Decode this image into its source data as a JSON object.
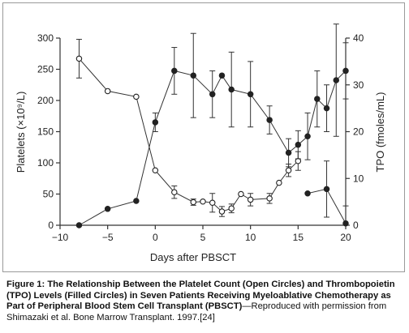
{
  "chart_data": {
    "type": "line",
    "xlabel": "Days after PBSCT",
    "ylabel_left": "Platelets (×10⁹/L)",
    "ylabel_right": "TPO (fmoles/mL)",
    "xlim": [
      -10,
      20
    ],
    "ylim_left": [
      0,
      300
    ],
    "ylim_right": [
      0,
      40
    ],
    "x_ticks": [
      -10,
      -5,
      0,
      5,
      10,
      15,
      20
    ],
    "y_ticks_left": [
      0,
      50,
      100,
      150,
      200,
      250,
      300
    ],
    "y_ticks_right": [
      0,
      10,
      20,
      30,
      40
    ],
    "grid": false,
    "series": [
      {
        "marker": "open-circle",
        "axis": "left",
        "x": [
          -8,
          -5,
          -2,
          0,
          2,
          4,
          5,
          6,
          7,
          8,
          9,
          10,
          12,
          13,
          14,
          15
        ],
        "y": [
          267,
          215,
          206,
          88,
          53,
          37,
          38,
          36,
          22,
          27,
          50,
          41,
          43,
          68,
          88,
          103
        ],
        "err": [
          31,
          0,
          0,
          0,
          10,
          5,
          0,
          15,
          8,
          7,
          0,
          10,
          8,
          0,
          10,
          15
        ]
      },
      {
        "marker": "filled-circle",
        "axis": "right",
        "x": [
          -8,
          -5,
          -2,
          0,
          2,
          4,
          6,
          7,
          8,
          10,
          12,
          14,
          15,
          16,
          17,
          18,
          19,
          20
        ],
        "y": [
          0,
          3.5,
          5.2,
          22,
          33,
          32,
          28,
          32,
          29,
          28,
          22.5,
          15.5,
          17.2,
          19,
          27,
          25,
          31,
          33
        ],
        "err": [
          0,
          0,
          0,
          2,
          5,
          9,
          5,
          0,
          8,
          7,
          3,
          3,
          3,
          5,
          6,
          5,
          12,
          6
        ]
      },
      {
        "marker": "filled-circle",
        "axis": "left",
        "x": [
          16,
          18,
          20
        ],
        "y": [
          51,
          58,
          3
        ],
        "err": [
          0,
          45,
          28
        ]
      }
    ]
  },
  "caption": {
    "bold": "Figure 1: The Relationship Between the Platelet Count (Open Circles) and Thrombopoietin (TPO) Levels (Filled Circles) in Seven Patients Receiving Myeloablative Chemotherapy as Part of Peripheral Blood Stem Cell Transplant (PBSCT)",
    "normal": "—Reproduced with permission from Shimazaki et al. Bone Marrow Transplant. 1997.[24]"
  }
}
